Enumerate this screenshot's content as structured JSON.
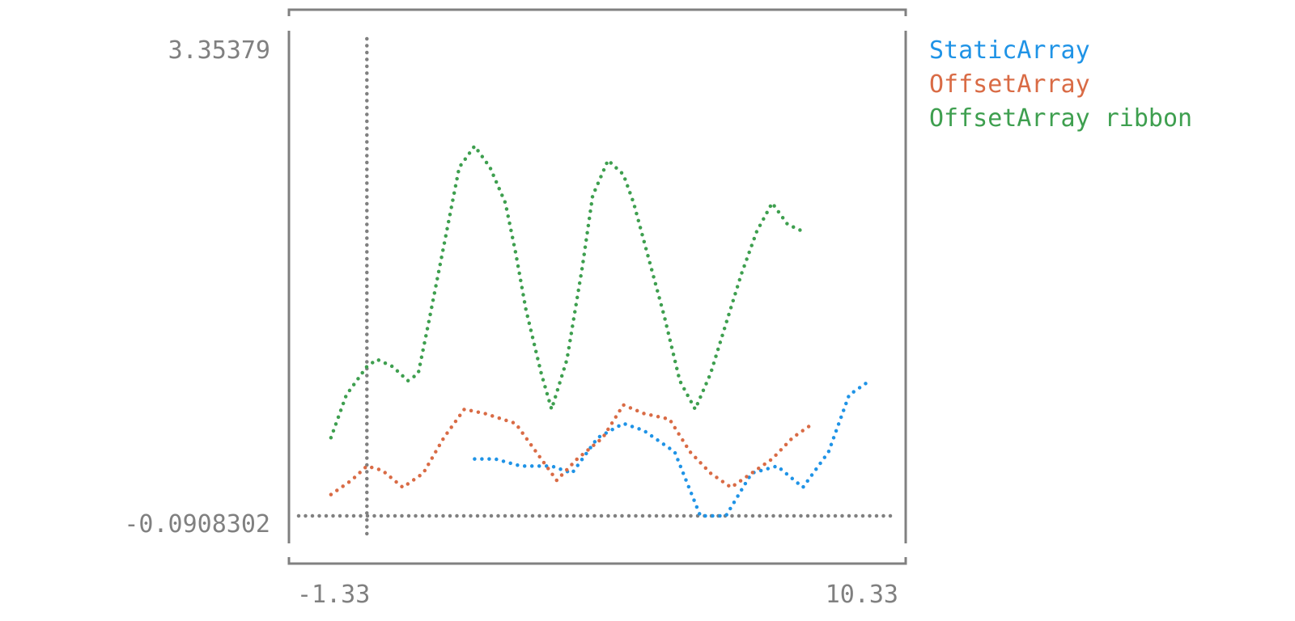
{
  "chart_data": {
    "type": "line",
    "style": "braille-dotted",
    "title": "",
    "xlabel": "",
    "ylabel": "",
    "xlim": [
      -1.33,
      10.33
    ],
    "ylim": [
      -0.0908302,
      3.35379
    ],
    "x_tick_labels": [
      "-1.33",
      "10.33"
    ],
    "y_tick_labels": [
      "3.35379",
      "-0.0908302"
    ],
    "axis_color": "#808080",
    "legend_position": "outside-top-right",
    "series": [
      {
        "name": "StaticArray",
        "color": "#1f93e6",
        "x": [
          2.1,
          2.5,
          3.0,
          3.6,
          4.0,
          4.5,
          5.0,
          5.4,
          6.0,
          6.5,
          7.0,
          7.5,
          8.0,
          8.5,
          9.0,
          9.4,
          9.8
        ],
        "y": [
          0.4,
          0.4,
          0.35,
          0.35,
          0.3,
          0.55,
          0.65,
          0.6,
          0.45,
          0.0,
          0.0,
          0.3,
          0.35,
          0.2,
          0.45,
          0.85,
          0.95
        ]
      },
      {
        "name": "OffsetArray",
        "color": "#d96b45",
        "x": [
          -0.7,
          -0.3,
          0.0,
          0.3,
          0.7,
          1.1,
          1.5,
          1.9,
          2.3,
          2.9,
          3.3,
          3.7,
          4.1,
          4.6,
          5.0,
          5.4,
          5.9,
          6.3,
          6.7,
          7.1,
          7.5,
          7.9,
          8.3,
          8.7
        ],
        "y": [
          0.15,
          0.25,
          0.35,
          0.32,
          0.2,
          0.3,
          0.55,
          0.75,
          0.72,
          0.65,
          0.45,
          0.25,
          0.4,
          0.55,
          0.78,
          0.72,
          0.68,
          0.45,
          0.3,
          0.2,
          0.3,
          0.4,
          0.55,
          0.65
        ]
      },
      {
        "name": "OffsetArray ribbon",
        "color": "#3e9f4f",
        "x": [
          -0.7,
          -0.4,
          0.0,
          0.2,
          0.5,
          0.8,
          1.0,
          1.2,
          1.5,
          1.8,
          2.1,
          2.4,
          2.7,
          2.9,
          3.1,
          3.4,
          3.6,
          3.9,
          4.2,
          4.4,
          4.7,
          5.0,
          5.2,
          5.5,
          5.8,
          6.1,
          6.4,
          6.7,
          7.0,
          7.3,
          7.6,
          7.9,
          8.2,
          8.5
        ],
        "y": [
          0.55,
          0.85,
          1.05,
          1.1,
          1.05,
          0.95,
          1.0,
          1.35,
          1.9,
          2.45,
          2.6,
          2.45,
          2.2,
          1.85,
          1.45,
          1.0,
          0.75,
          1.1,
          1.75,
          2.25,
          2.5,
          2.4,
          2.2,
          1.8,
          1.4,
          0.95,
          0.75,
          1.0,
          1.35,
          1.7,
          2.0,
          2.2,
          2.05,
          2.0
        ]
      }
    ]
  }
}
